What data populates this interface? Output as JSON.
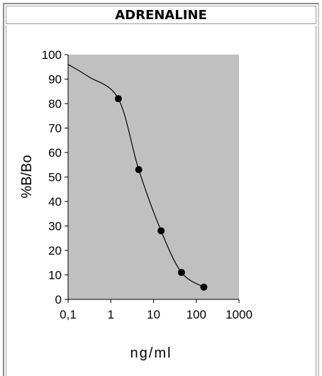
{
  "chart_data": {
    "type": "scatter",
    "title": "ADRENALINE",
    "xlabel": "ng/ml",
    "ylabel": "%B/Bo",
    "x_scale": "log",
    "xlim": [
      0.1,
      1000
    ],
    "ylim": [
      0,
      100
    ],
    "x_ticks": [
      "0,1",
      "1",
      "10",
      "100",
      "1000"
    ],
    "y_ticks": [
      "0",
      "10",
      "20",
      "30",
      "40",
      "50",
      "60",
      "70",
      "80",
      "90",
      "100"
    ],
    "grid": false,
    "plot_background": "#c0c0c0",
    "points": [
      {
        "x": 1.5,
        "y": 82
      },
      {
        "x": 4.5,
        "y": 53
      },
      {
        "x": 15,
        "y": 28
      },
      {
        "x": 45,
        "y": 11
      },
      {
        "x": 150,
        "y": 5
      }
    ],
    "fit_curve": [
      {
        "x": 0.1,
        "y": 96
      },
      {
        "x": 0.3,
        "y": 91
      },
      {
        "x": 1.5,
        "y": 82
      },
      {
        "x": 4.5,
        "y": 53
      },
      {
        "x": 15,
        "y": 28
      },
      {
        "x": 45,
        "y": 11
      },
      {
        "x": 150,
        "y": 5
      }
    ]
  }
}
